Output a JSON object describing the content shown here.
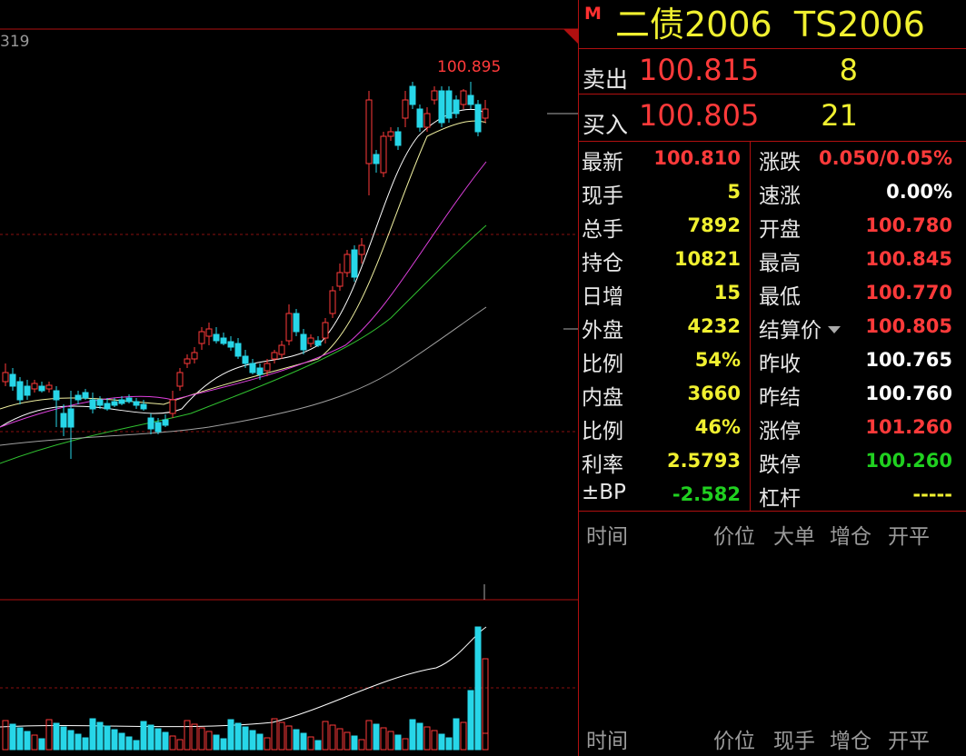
{
  "colors": {
    "up": "#ff3a3a",
    "down": "#27d6e8",
    "yellow": "#f0f030",
    "green": "#20d020",
    "white": "#ffffff",
    "grid": "#b01010"
  },
  "chart": {
    "left_label": "319",
    "high_label": "100.895"
  },
  "quote": {
    "badge": "M",
    "title": "二债2006  TS2006",
    "sell_label": "卖出",
    "sell_price": "100.815",
    "sell_vol": "8",
    "buy_label": "买入",
    "buy_price": "100.805",
    "buy_vol": "21"
  },
  "stats": [
    {
      "l": "最新",
      "lv": "100.810",
      "lc": "#ff3a3a",
      "r": "涨跌",
      "rv": "0.050/0.05%",
      "rc": "#ff3a3a"
    },
    {
      "l": "现手",
      "lv": "5",
      "lc": "#f0f030",
      "r": "速涨",
      "rv": "0.00%",
      "rc": "#ffffff"
    },
    {
      "l": "总手",
      "lv": "7892",
      "lc": "#f0f030",
      "r": "开盘",
      "rv": "100.780",
      "rc": "#ff3a3a"
    },
    {
      "l": "持仓",
      "lv": "10821",
      "lc": "#f0f030",
      "r": "最高",
      "rv": "100.845",
      "rc": "#ff3a3a"
    },
    {
      "l": "日增",
      "lv": "15",
      "lc": "#f0f030",
      "r": "最低",
      "rv": "100.770",
      "rc": "#ff3a3a"
    },
    {
      "l": "外盘",
      "lv": "4232",
      "lc": "#f0f030",
      "r": "结算价",
      "rv": "100.805",
      "rc": "#ff3a3a",
      "dropdown": true
    },
    {
      "l": "比例",
      "lv": "54%",
      "lc": "#f0f030",
      "r": "昨收",
      "rv": "100.765",
      "rc": "#ffffff"
    },
    {
      "l": "内盘",
      "lv": "3660",
      "lc": "#f0f030",
      "r": "昨结",
      "rv": "100.760",
      "rc": "#ffffff"
    },
    {
      "l": "比例",
      "lv": "46%",
      "lc": "#f0f030",
      "r": "涨停",
      "rv": "101.260",
      "rc": "#ff3a3a"
    },
    {
      "l": "利率",
      "lv": "2.5793",
      "lc": "#f0f030",
      "r": "跌停",
      "rv": "100.260",
      "rc": "#20d020"
    },
    {
      "l": "±BP",
      "lv": "-2.582",
      "lc": "#20d020",
      "r": "杠杆",
      "rv": "-----",
      "rc": "#f0f030"
    }
  ],
  "tick_header_1": {
    "time": "时间",
    "price": "价位",
    "big": "大单",
    "pos": "增仓",
    "open": "开平"
  },
  "tick_header_2": {
    "time": "时间",
    "price": "价位",
    "hand": "现手",
    "pos": "增仓",
    "open": "开平"
  },
  "chart_data": {
    "type": "candlestick",
    "high_annotation": 100.895,
    "candles_pixel_style": true
  }
}
